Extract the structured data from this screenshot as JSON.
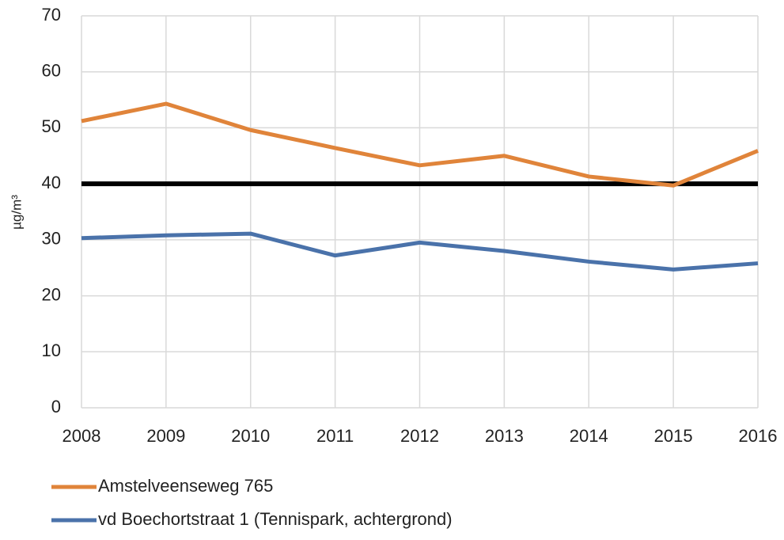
{
  "chart_data": {
    "type": "line",
    "y_label": "µg/m³",
    "x": [
      2008,
      2009,
      2010,
      2011,
      2012,
      2013,
      2014,
      2015,
      2016
    ],
    "series": [
      {
        "name": "Amstelveenseweg 765",
        "color": "#e0843a",
        "values": [
          51.2,
          54.3,
          49.6,
          46.4,
          43.3,
          45.0,
          41.3,
          39.7,
          45.9
        ]
      },
      {
        "name": "vd Boechortstraat 1 (Tennispark, achtergrond)",
        "color": "#4a72aa",
        "values": [
          30.3,
          30.8,
          31.1,
          27.2,
          29.5,
          28.0,
          26.1,
          24.7,
          25.8
        ]
      }
    ],
    "reference_line": {
      "value": 40,
      "color": "#000000"
    },
    "xlim": [
      2008,
      2016
    ],
    "xticks": [
      2008,
      2009,
      2010,
      2011,
      2012,
      2013,
      2014,
      2015,
      2016
    ],
    "ylim": [
      0,
      70
    ],
    "yticks": [
      0,
      10,
      20,
      30,
      40,
      50,
      60,
      70
    ],
    "grid": true,
    "legend": "bottom"
  }
}
